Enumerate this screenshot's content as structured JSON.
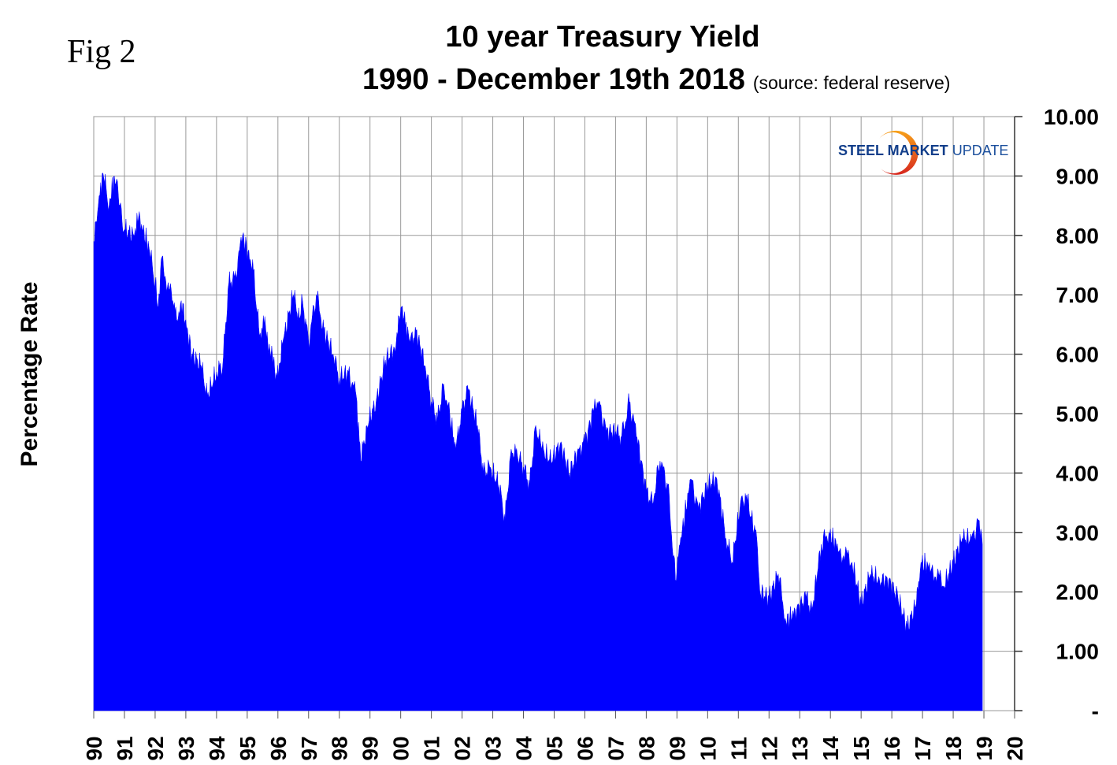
{
  "figure_label": "Fig 2",
  "logo": {
    "bold": "STEEL MARKET",
    "light": "UPDATE"
  },
  "chart_data": {
    "type": "area",
    "title": "10 year Treasury Yield",
    "subtitle": "1990 - December 19th 2018",
    "source_note": "(source: federal reserve)",
    "xlabel": "",
    "ylabel": "Percentage Rate",
    "xlim": [
      1990,
      2020
    ],
    "ylim": [
      0,
      10
    ],
    "grid": true,
    "fill_color": "#0000ff",
    "x_tick_labels": [
      "90",
      "91",
      "92",
      "93",
      "94",
      "95",
      "96",
      "97",
      "98",
      "99",
      "00",
      "01",
      "02",
      "03",
      "04",
      "05",
      "06",
      "07",
      "08",
      "09",
      "10",
      "11",
      "12",
      "13",
      "14",
      "15",
      "16",
      "17",
      "18",
      "19",
      "20"
    ],
    "y_tick_labels": [
      "-",
      "1.00",
      "2.00",
      "3.00",
      "4.00",
      "5.00",
      "6.00",
      "7.00",
      "8.00",
      "9.00",
      "10.00"
    ],
    "series": [
      {
        "name": "10 year Treasury Yield",
        "x": [
          1990.0,
          1990.15,
          1990.3,
          1990.5,
          1990.67,
          1991.0,
          1991.3,
          1991.46,
          1991.8,
          1992.0,
          1992.1,
          1992.2,
          1992.6,
          1992.75,
          1992.85,
          1993.2,
          1993.5,
          1993.7,
          1994.0,
          1994.2,
          1994.4,
          1994.6,
          1994.85,
          1995.2,
          1995.4,
          1995.55,
          1995.97,
          1996.2,
          1996.5,
          1996.7,
          1996.8,
          1997.0,
          1997.25,
          1997.5,
          1997.8,
          1998.0,
          1998.3,
          1998.55,
          1998.7,
          1998.9,
          1999.2,
          1999.5,
          1999.8,
          2000.03,
          2000.3,
          2000.5,
          2000.8,
          2001.0,
          2001.2,
          2001.4,
          2001.65,
          2001.8,
          2002.0,
          2002.2,
          2002.5,
          2002.7,
          2002.9,
          2003.2,
          2003.4,
          2003.6,
          2003.8,
          2004.0,
          2004.2,
          2004.4,
          2004.6,
          2004.9,
          2005.2,
          2005.5,
          2005.8,
          2006.0,
          2006.3,
          2006.45,
          2006.7,
          2007.0,
          2007.2,
          2007.45,
          2007.7,
          2008.0,
          2008.2,
          2008.45,
          2008.7,
          2008.95,
          2009.1,
          2009.45,
          2009.7,
          2010.0,
          2010.3,
          2010.6,
          2010.8,
          2011.1,
          2011.3,
          2011.6,
          2011.7,
          2012.0,
          2012.3,
          2012.55,
          2012.9,
          2013.2,
          2013.4,
          2013.7,
          2013.95,
          2014.3,
          2014.7,
          2015.0,
          2015.3,
          2015.6,
          2015.9,
          2016.2,
          2016.5,
          2016.8,
          2016.95,
          2017.3,
          2017.7,
          2018.0,
          2018.3,
          2018.6,
          2018.85,
          2018.95
        ],
        "y": [
          7.9,
          8.5,
          9.05,
          8.5,
          9.0,
          8.1,
          8.0,
          8.3,
          7.8,
          7.2,
          6.8,
          7.6,
          6.8,
          6.6,
          6.9,
          6.0,
          5.8,
          5.3,
          5.7,
          5.8,
          7.2,
          7.3,
          8.0,
          7.4,
          6.3,
          6.5,
          5.6,
          6.3,
          7.0,
          6.6,
          6.9,
          6.2,
          7.0,
          6.4,
          6.0,
          5.6,
          5.7,
          5.3,
          4.2,
          4.8,
          5.2,
          5.9,
          6.1,
          6.8,
          6.2,
          6.4,
          5.8,
          5.2,
          4.9,
          5.5,
          4.8,
          4.4,
          5.1,
          5.4,
          4.8,
          4.0,
          4.1,
          3.8,
          3.2,
          4.4,
          4.3,
          4.1,
          3.8,
          4.8,
          4.4,
          4.2,
          4.5,
          4.0,
          4.4,
          4.5,
          5.1,
          5.2,
          4.7,
          4.7,
          4.6,
          5.2,
          4.6,
          3.7,
          3.5,
          4.2,
          3.8,
          2.2,
          2.8,
          3.9,
          3.4,
          3.8,
          3.9,
          2.9,
          2.5,
          3.6,
          3.5,
          2.9,
          2.0,
          1.9,
          2.3,
          1.5,
          1.7,
          1.9,
          1.7,
          2.8,
          3.0,
          2.7,
          2.5,
          1.8,
          2.3,
          2.2,
          2.2,
          1.9,
          1.4,
          1.8,
          2.5,
          2.4,
          2.1,
          2.5,
          2.9,
          2.9,
          3.2,
          2.8
        ]
      }
    ]
  }
}
